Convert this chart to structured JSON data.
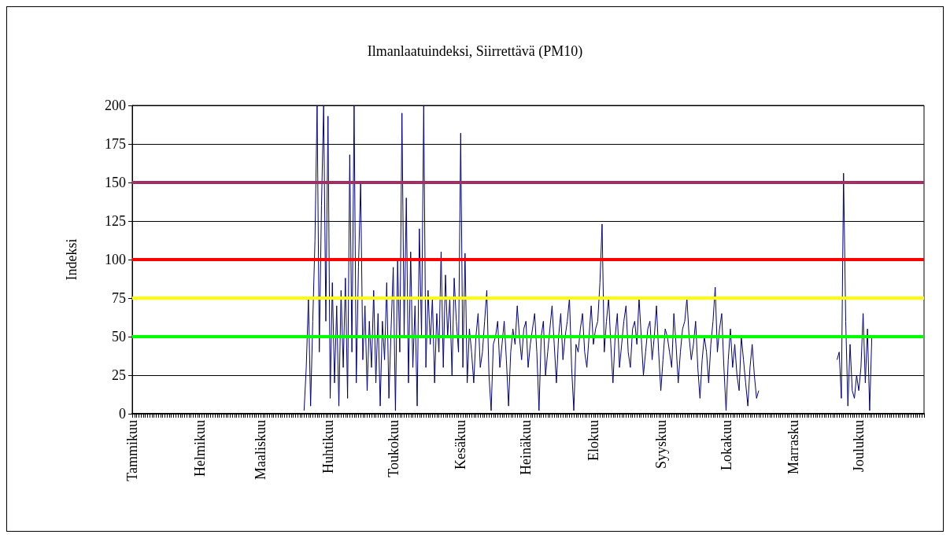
{
  "chart_data": {
    "type": "line",
    "title": "Ilmanlaatuindeksi, Siirrettävä (PM10)",
    "ylabel": "Indeksi",
    "categories": [
      "Tammikuu",
      null,
      null,
      null,
      null,
      null,
      null,
      null,
      null,
      null,
      null,
      null,
      null,
      null,
      null,
      null,
      null,
      null,
      null,
      null,
      null,
      null,
      null,
      null,
      null,
      null,
      null,
      null,
      null,
      null,
      null,
      "Helmikuu",
      null,
      null,
      null,
      null,
      null,
      null,
      null,
      null,
      null,
      null,
      null,
      null,
      null,
      null,
      null,
      null,
      null,
      null,
      null,
      null,
      null,
      null,
      null,
      null,
      null,
      null,
      null,
      "Maaliskuu",
      null,
      null,
      null,
      null,
      null,
      null,
      null,
      null,
      null,
      null,
      null,
      null,
      null,
      null,
      null,
      null,
      null,
      null,
      null,
      null,
      null,
      null,
      null,
      null,
      null,
      null,
      null,
      null,
      null,
      null,
      "Huhtikuu",
      null,
      null,
      null,
      null,
      null,
      null,
      null,
      null,
      null,
      null,
      null,
      null,
      null,
      null,
      null,
      null,
      null,
      null,
      null,
      null,
      null,
      null,
      null,
      null,
      null,
      null,
      null,
      null,
      null,
      "Toukokuu",
      null,
      null,
      null,
      null,
      null,
      null,
      null,
      null,
      null,
      null,
      null,
      null,
      null,
      null,
      null,
      null,
      null,
      null,
      null,
      null,
      null,
      null,
      null,
      null,
      null,
      null,
      null,
      null,
      null,
      null,
      "Kesäkuu",
      null,
      null,
      null,
      null,
      null,
      null,
      null,
      null,
      null,
      null,
      null,
      null,
      null,
      null,
      null,
      null,
      null,
      null,
      null,
      null,
      null,
      null,
      null,
      null,
      null,
      null,
      null,
      null,
      null,
      "Heinäkuu",
      null,
      null,
      null,
      null,
      null,
      null,
      null,
      null,
      null,
      null,
      null,
      null,
      null,
      null,
      null,
      null,
      null,
      null,
      null,
      null,
      null,
      null,
      null,
      null,
      null,
      null,
      null,
      null,
      null,
      null,
      "Elokuu",
      null,
      null,
      null,
      null,
      null,
      null,
      null,
      null,
      null,
      null,
      null,
      null,
      null,
      null,
      null,
      null,
      null,
      null,
      null,
      null,
      null,
      null,
      null,
      null,
      null,
      null,
      null,
      null,
      null,
      null,
      "Syyskuu",
      null,
      null,
      null,
      null,
      null,
      null,
      null,
      null,
      null,
      null,
      null,
      null,
      null,
      null,
      null,
      null,
      null,
      null,
      null,
      null,
      null,
      null,
      null,
      null,
      null,
      null,
      null,
      null,
      null,
      "Lokakuu",
      null,
      null,
      null,
      null,
      null,
      null,
      null,
      null,
      null,
      null,
      null,
      null,
      null,
      null,
      null,
      null,
      null,
      null,
      null,
      null,
      null,
      null,
      null,
      null,
      null,
      null,
      null,
      null,
      null,
      null,
      "Marrasku",
      null,
      null,
      null,
      null,
      null,
      null,
      null,
      null,
      null,
      null,
      null,
      null,
      null,
      null,
      null,
      null,
      null,
      null,
      null,
      null,
      null,
      null,
      null,
      null,
      null,
      null,
      null,
      null,
      null,
      "Joulukuu",
      null,
      null,
      null,
      null,
      null,
      null,
      null,
      null,
      null,
      null,
      null,
      null,
      null,
      null,
      null,
      null,
      null,
      null,
      null,
      null,
      null,
      null,
      null,
      null,
      null,
      null,
      null,
      null,
      null,
      null
    ],
    "ylim": [
      0,
      200
    ],
    "yticks": [
      0,
      25,
      50,
      75,
      100,
      125,
      150,
      175,
      200
    ],
    "grid": "y",
    "marker": "none",
    "line_style": "solid",
    "series": [
      {
        "color": "#000080",
        "values": [
          null,
          null,
          null,
          null,
          null,
          null,
          null,
          null,
          null,
          null,
          null,
          null,
          null,
          null,
          null,
          null,
          null,
          null,
          null,
          null,
          null,
          null,
          null,
          null,
          null,
          null,
          null,
          null,
          null,
          null,
          null,
          null,
          null,
          null,
          null,
          null,
          null,
          null,
          null,
          null,
          null,
          null,
          null,
          null,
          null,
          null,
          null,
          null,
          null,
          null,
          null,
          null,
          null,
          null,
          null,
          null,
          null,
          null,
          null,
          null,
          null,
          null,
          null,
          null,
          null,
          null,
          null,
          null,
          null,
          null,
          null,
          null,
          null,
          null,
          null,
          null,
          null,
          null,
          null,
          2,
          30,
          75,
          5,
          60,
          112,
          200,
          40,
          135,
          200,
          60,
          193,
          10,
          85,
          20,
          70,
          5,
          80,
          30,
          88,
          10,
          168,
          40,
          200,
          20,
          95,
          150,
          35,
          70,
          15,
          60,
          30,
          80,
          20,
          65,
          5,
          60,
          35,
          85,
          10,
          55,
          95,
          2,
          100,
          40,
          195,
          50,
          140,
          20,
          105,
          30,
          70,
          5,
          120,
          50,
          200,
          30,
          80,
          45,
          75,
          20,
          65,
          40,
          105,
          30,
          90,
          50,
          75,
          25,
          88,
          60,
          40,
          182,
          30,
          104,
          20,
          55,
          40,
          20,
          50,
          65,
          30,
          40,
          60,
          80,
          25,
          2,
          45,
          50,
          60,
          30,
          45,
          60,
          35,
          5,
          40,
          55,
          45,
          70,
          50,
          35,
          55,
          60,
          30,
          45,
          55,
          65,
          40,
          2,
          50,
          60,
          25,
          40,
          55,
          70,
          45,
          20,
          50,
          65,
          35,
          50,
          60,
          75,
          30,
          2,
          45,
          40,
          55,
          65,
          40,
          30,
          50,
          70,
          45,
          55,
          60,
          85,
          123,
          40,
          60,
          75,
          45,
          20,
          50,
          65,
          30,
          45,
          60,
          70,
          40,
          30,
          55,
          60,
          45,
          75,
          50,
          25,
          40,
          55,
          60,
          35,
          50,
          70,
          40,
          15,
          35,
          55,
          50,
          40,
          30,
          65,
          45,
          20,
          40,
          55,
          60,
          75,
          50,
          35,
          45,
          60,
          30,
          10,
          35,
          50,
          40,
          20,
          45,
          60,
          82,
          40,
          55,
          65,
          30,
          2,
          35,
          55,
          30,
          45,
          25,
          15,
          50,
          35,
          20,
          5,
          30,
          45,
          25,
          10,
          15,
          null,
          null,
          null,
          null,
          null,
          null,
          null,
          null,
          null,
          null,
          null,
          null,
          null,
          null,
          null,
          null,
          null,
          null,
          null,
          null,
          null,
          null,
          null,
          null,
          null,
          null,
          null,
          null,
          null,
          null,
          null,
          null,
          null,
          null,
          null,
          35,
          40,
          10,
          156,
          60,
          5,
          45,
          15,
          10,
          25,
          15,
          30,
          65,
          20,
          55,
          2,
          50,
          null,
          null,
          null,
          null,
          null,
          null,
          null,
          null,
          null,
          null,
          null,
          null,
          null,
          null,
          null,
          null,
          null,
          null,
          null,
          null,
          null,
          null,
          null,
          null
        ]
      }
    ],
    "ref_lines": [
      {
        "axis": "y",
        "value": 150,
        "color": "#993366"
      },
      {
        "axis": "y",
        "value": 100,
        "color": "#ff0000"
      },
      {
        "axis": "y",
        "value": 75,
        "color": "#ffff00"
      },
      {
        "axis": "y",
        "value": 50,
        "color": "#00ff00"
      }
    ]
  }
}
